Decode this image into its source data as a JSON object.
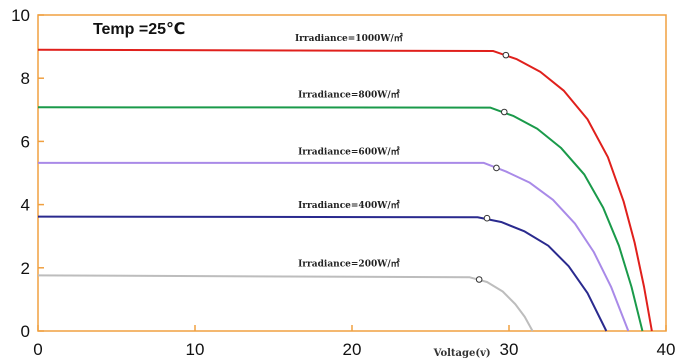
{
  "chart_data": {
    "type": "line",
    "title": "Temp =25℃",
    "xlabel": "Voltage(v)",
    "ylabel": "",
    "xlim": [
      0,
      40
    ],
    "ylim": [
      0,
      10
    ],
    "x_ticks": [
      0,
      10,
      20,
      30,
      40
    ],
    "y_ticks": [
      0,
      2,
      4,
      6,
      8,
      10
    ],
    "x_tick_labels": [
      "0",
      "10",
      "20",
      "30",
      "40"
    ],
    "y_tick_labels": [
      "0",
      "2",
      "4",
      "6",
      "8",
      "10"
    ],
    "grid": false,
    "frame_color": "#f0a040",
    "series": [
      {
        "name": "Irradiance=1000W/㎡",
        "color": "#e0201c",
        "isc": 8.9,
        "voc": 39.1,
        "knee_v": 29.0,
        "mpp": [
          29.8,
          8.73
        ],
        "points": [
          [
            0,
            8.9
          ],
          [
            29.0,
            8.86
          ],
          [
            30.5,
            8.6
          ],
          [
            32.0,
            8.2
          ],
          [
            33.5,
            7.6
          ],
          [
            35.0,
            6.7
          ],
          [
            36.3,
            5.5
          ],
          [
            37.3,
            4.1
          ],
          [
            38.0,
            2.8
          ],
          [
            38.6,
            1.4
          ],
          [
            39.1,
            0
          ]
        ]
      },
      {
        "name": "Irradiance=800W/㎡",
        "color": "#1a9a4a",
        "isc": 7.1,
        "voc": 38.5,
        "knee_v": 28.8,
        "mpp": [
          29.7,
          6.93
        ],
        "points": [
          [
            0,
            7.08
          ],
          [
            28.8,
            7.07
          ],
          [
            30.3,
            6.8
          ],
          [
            31.8,
            6.4
          ],
          [
            33.3,
            5.8
          ],
          [
            34.8,
            4.95
          ],
          [
            36.0,
            3.9
          ],
          [
            37.0,
            2.7
          ],
          [
            37.8,
            1.4
          ],
          [
            38.5,
            0
          ]
        ]
      },
      {
        "name": "Irradiance=600W/㎡",
        "color": "#a98ae8",
        "isc": 5.3,
        "voc": 37.6,
        "knee_v": 28.4,
        "mpp": [
          29.2,
          5.16
        ],
        "points": [
          [
            0,
            5.32
          ],
          [
            28.4,
            5.32
          ],
          [
            29.8,
            5.05
          ],
          [
            31.3,
            4.7
          ],
          [
            32.8,
            4.15
          ],
          [
            34.2,
            3.4
          ],
          [
            35.4,
            2.5
          ],
          [
            36.5,
            1.4
          ],
          [
            37.6,
            0
          ]
        ]
      },
      {
        "name": "Irradiance=400W/㎡",
        "color": "#2a2a8e",
        "isc": 3.6,
        "voc": 36.2,
        "knee_v": 28.0,
        "mpp": [
          28.6,
          3.57
        ],
        "points": [
          [
            0,
            3.62
          ],
          [
            28.0,
            3.6
          ],
          [
            29.5,
            3.45
          ],
          [
            31.0,
            3.15
          ],
          [
            32.5,
            2.7
          ],
          [
            33.8,
            2.05
          ],
          [
            35.0,
            1.2
          ],
          [
            36.2,
            0
          ]
        ]
      },
      {
        "name": "Irradiance=200W/㎡",
        "color": "#bdbdbd",
        "isc": 1.76,
        "voc": 31.5,
        "knee_v": 27.5,
        "mpp": [
          28.1,
          1.63
        ],
        "points": [
          [
            0,
            1.76
          ],
          [
            27.5,
            1.7
          ],
          [
            28.6,
            1.55
          ],
          [
            29.6,
            1.25
          ],
          [
            30.4,
            0.85
          ],
          [
            31.0,
            0.45
          ],
          [
            31.5,
            0
          ]
        ]
      }
    ]
  }
}
